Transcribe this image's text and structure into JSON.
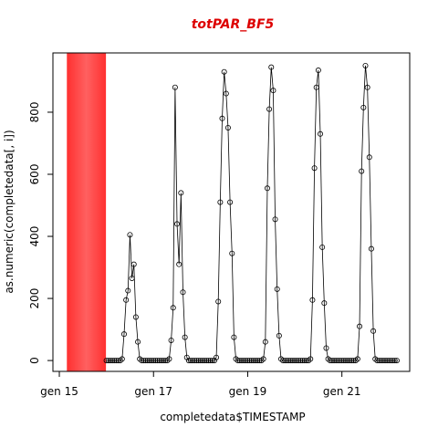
{
  "chart_data": {
    "type": "line",
    "title": "totPAR_BF5",
    "x_label": "completedata$TIMESTAMP",
    "y_label": "as.numeric(completedata[, i])",
    "xlim": [
      14.864,
      22.44
    ],
    "ylim": [
      -35,
      991
    ],
    "xticks": [
      {
        "value": 15,
        "label": "gen 15"
      },
      {
        "value": 17,
        "label": "gen 17"
      },
      {
        "value": 19,
        "label": "gen 19"
      },
      {
        "value": 21,
        "label": "gen 21"
      }
    ],
    "yticks": [
      0,
      200,
      400,
      600,
      800
    ],
    "shaded_region": [
      15.16,
      15.99
    ],
    "shaded_color": "#ff4040",
    "color": "#000000",
    "x": [
      16,
      16.042,
      16.083,
      16.125,
      16.167,
      16.208,
      16.25,
      16.292,
      16.333,
      16.375,
      16.417,
      16.458,
      16.5,
      16.542,
      16.583,
      16.625,
      16.667,
      16.708,
      16.75,
      16.792,
      16.833,
      16.875,
      16.917,
      16.958,
      17,
      17.042,
      17.083,
      17.125,
      17.167,
      17.208,
      17.25,
      17.292,
      17.333,
      17.375,
      17.417,
      17.458,
      17.5,
      17.542,
      17.583,
      17.625,
      17.667,
      17.708,
      17.75,
      17.792,
      17.833,
      17.875,
      17.917,
      17.958,
      18,
      18.042,
      18.083,
      18.125,
      18.167,
      18.208,
      18.25,
      18.292,
      18.333,
      18.375,
      18.417,
      18.458,
      18.5,
      18.542,
      18.583,
      18.625,
      18.667,
      18.708,
      18.75,
      18.792,
      18.833,
      18.875,
      18.917,
      18.958,
      19,
      19.042,
      19.083,
      19.125,
      19.167,
      19.208,
      19.25,
      19.292,
      19.333,
      19.375,
      19.417,
      19.458,
      19.5,
      19.542,
      19.583,
      19.625,
      19.667,
      19.708,
      19.75,
      19.792,
      19.833,
      19.875,
      19.917,
      19.958,
      20,
      20.042,
      20.083,
      20.125,
      20.167,
      20.208,
      20.25,
      20.292,
      20.333,
      20.375,
      20.417,
      20.458,
      20.5,
      20.542,
      20.583,
      20.625,
      20.667,
      20.708,
      20.75,
      20.792,
      20.833,
      20.875,
      20.917,
      20.958,
      21,
      21.042,
      21.083,
      21.125,
      21.167,
      21.208,
      21.25,
      21.292,
      21.333,
      21.375,
      21.417,
      21.458,
      21.5,
      21.542,
      21.583,
      21.625,
      21.667,
      21.708,
      21.75,
      21.792,
      21.833,
      21.875,
      21.917,
      21.958,
      22,
      22.042,
      22.083,
      22.125,
      22.167
    ],
    "values": [
      0,
      0,
      0,
      0,
      0,
      0,
      0,
      0,
      5,
      85,
      195,
      225,
      405,
      265,
      310,
      140,
      60,
      5,
      0,
      0,
      0,
      0,
      0,
      0,
      0,
      0,
      0,
      0,
      0,
      0,
      0,
      0,
      5,
      65,
      170,
      880,
      440,
      310,
      540,
      220,
      75,
      10,
      0,
      0,
      0,
      0,
      0,
      0,
      0,
      0,
      0,
      0,
      0,
      0,
      0,
      0,
      10,
      190,
      510,
      780,
      930,
      860,
      750,
      510,
      345,
      75,
      5,
      0,
      0,
      0,
      0,
      0,
      0,
      0,
      0,
      0,
      0,
      0,
      0,
      0,
      5,
      60,
      555,
      810,
      945,
      870,
      455,
      230,
      80,
      5,
      0,
      0,
      0,
      0,
      0,
      0,
      0,
      0,
      0,
      0,
      0,
      0,
      0,
      0,
      5,
      195,
      620,
      880,
      935,
      730,
      365,
      185,
      40,
      5,
      0,
      0,
      0,
      0,
      0,
      0,
      0,
      0,
      0,
      0,
      0,
      0,
      0,
      0,
      5,
      110,
      610,
      815,
      950,
      880,
      655,
      360,
      95,
      5,
      0,
      0,
      0,
      0,
      0,
      0,
      0,
      0,
      0,
      0,
      0
    ]
  }
}
